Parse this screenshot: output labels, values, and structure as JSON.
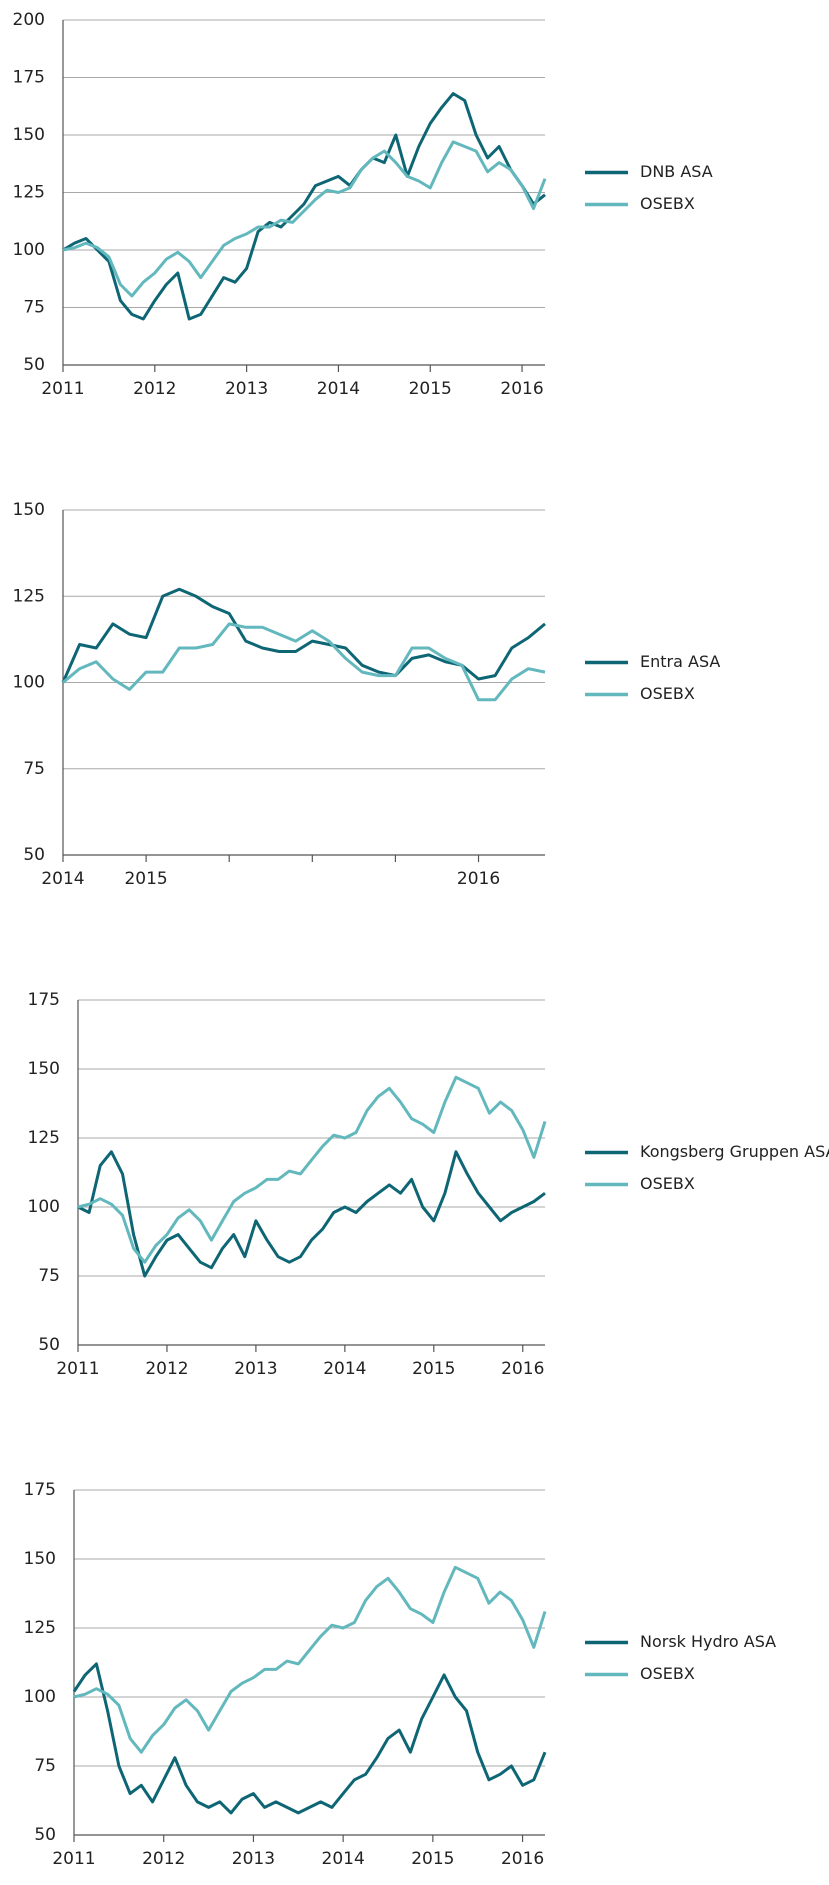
{
  "chart_data": [
    {
      "type": "line",
      "legend": "right",
      "x": [
        2011,
        2011.125,
        2011.25,
        2011.375,
        2011.5,
        2011.625,
        2011.75,
        2011.875,
        2012,
        2012.125,
        2012.25,
        2012.375,
        2012.5,
        2012.625,
        2012.75,
        2012.875,
        2013,
        2013.125,
        2013.25,
        2013.375,
        2013.5,
        2013.625,
        2013.75,
        2013.875,
        2014,
        2014.125,
        2014.25,
        2014.375,
        2014.5,
        2014.625,
        2014.75,
        2014.875,
        2015,
        2015.125,
        2015.25,
        2015.375,
        2015.5,
        2015.625,
        2015.75,
        2015.875,
        2016,
        2016.125,
        2016.25
      ],
      "series": [
        {
          "name": "DNB ASA",
          "color": "#0e6675",
          "values": [
            100,
            103,
            105,
            100,
            95,
            78,
            72,
            70,
            78,
            85,
            90,
            70,
            72,
            80,
            88,
            86,
            92,
            108,
            112,
            110,
            115,
            120,
            128,
            130,
            132,
            128,
            135,
            140,
            138,
            150,
            132,
            145,
            155,
            162,
            168,
            165,
            150,
            140,
            145,
            135,
            128,
            120,
            124
          ]
        },
        {
          "name": "OSEBX",
          "color": "#62b8bd",
          "values": [
            100,
            101,
            103,
            101,
            97,
            85,
            80,
            86,
            90,
            96,
            99,
            95,
            88,
            95,
            102,
            105,
            107,
            110,
            110,
            113,
            112,
            117,
            122,
            126,
            125,
            127,
            135,
            140,
            143,
            138,
            132,
            130,
            127,
            138,
            147,
            145,
            143,
            134,
            138,
            135,
            128,
            118,
            131
          ]
        }
      ],
      "xlim": [
        2011,
        2016.25
      ],
      "xticks": [
        2011,
        2012,
        2013,
        2014,
        2015,
        2016
      ],
      "ylim": [
        50,
        200
      ],
      "yticks": [
        50,
        75,
        100,
        125,
        150,
        175,
        200
      ],
      "grid": true
    },
    {
      "type": "line",
      "legend": "right",
      "x": [
        2014.75,
        2014.8,
        2014.85,
        2014.9,
        2014.95,
        2015,
        2015.05,
        2015.1,
        2015.15,
        2015.2,
        2015.25,
        2015.3,
        2015.35,
        2015.4,
        2015.45,
        2015.5,
        2015.55,
        2015.6,
        2015.65,
        2015.7,
        2015.75,
        2015.8,
        2015.85,
        2015.9,
        2015.95,
        2016,
        2016.05,
        2016.1,
        2016.15,
        2016.2
      ],
      "series": [
        {
          "name": "Entra ASA",
          "color": "#0e6675",
          "values": [
            100,
            111,
            110,
            117,
            114,
            113,
            125,
            127,
            125,
            122,
            120,
            112,
            110,
            109,
            109,
            112,
            111,
            110,
            105,
            103,
            102,
            107,
            108,
            106,
            105,
            101,
            102,
            110,
            113,
            117
          ]
        },
        {
          "name": "OSEBX",
          "color": "#62b8bd",
          "values": [
            100,
            104,
            106,
            101,
            98,
            103,
            103,
            110,
            110,
            111,
            117,
            116,
            116,
            114,
            112,
            115,
            112,
            107,
            103,
            102,
            102,
            110,
            110,
            107,
            105,
            95,
            95,
            101,
            104,
            103
          ]
        }
      ],
      "xlim": [
        2014.75,
        2016.2
      ],
      "xticks": [
        {
          "value": 2014.75,
          "label": "2014"
        },
        2015,
        {
          "value": 2015.25,
          "label": null
        },
        {
          "value": 2015.5,
          "label": null
        },
        {
          "value": 2015.75,
          "label": null
        },
        2016
      ],
      "ylim": [
        50,
        150
      ],
      "yticks": [
        50,
        75,
        100,
        125,
        150
      ],
      "grid": true
    },
    {
      "type": "line",
      "legend": "right",
      "x": [
        2011,
        2011.125,
        2011.25,
        2011.375,
        2011.5,
        2011.625,
        2011.75,
        2011.875,
        2012,
        2012.125,
        2012.25,
        2012.375,
        2012.5,
        2012.625,
        2012.75,
        2012.875,
        2013,
        2013.125,
        2013.25,
        2013.375,
        2013.5,
        2013.625,
        2013.75,
        2013.875,
        2014,
        2014.125,
        2014.25,
        2014.375,
        2014.5,
        2014.625,
        2014.75,
        2014.875,
        2015,
        2015.125,
        2015.25,
        2015.375,
        2015.5,
        2015.625,
        2015.75,
        2015.875,
        2016,
        2016.125,
        2016.25
      ],
      "series": [
        {
          "name": "Kongsberg Gruppen ASA",
          "color": "#0e6675",
          "values": [
            100,
            98,
            115,
            120,
            112,
            90,
            75,
            82,
            88,
            90,
            85,
            80,
            78,
            85,
            90,
            82,
            95,
            88,
            82,
            80,
            82,
            88,
            92,
            98,
            100,
            98,
            102,
            105,
            108,
            105,
            110,
            100,
            95,
            105,
            120,
            112,
            105,
            100,
            95,
            98,
            100,
            102,
            105
          ]
        },
        {
          "name": "OSEBX",
          "color": "#62b8bd",
          "values": [
            100,
            101,
            103,
            101,
            97,
            85,
            80,
            86,
            90,
            96,
            99,
            95,
            88,
            95,
            102,
            105,
            107,
            110,
            110,
            113,
            112,
            117,
            122,
            126,
            125,
            127,
            135,
            140,
            143,
            138,
            132,
            130,
            127,
            138,
            147,
            145,
            143,
            134,
            138,
            135,
            128,
            118,
            131
          ]
        }
      ],
      "xlim": [
        2011,
        2016.25
      ],
      "xticks": [
        2011,
        2012,
        2013,
        2014,
        2015,
        2016
      ],
      "ylim": [
        50,
        175
      ],
      "yticks": [
        50,
        75,
        100,
        125,
        150,
        175
      ],
      "grid": true
    },
    {
      "type": "line",
      "legend": "right",
      "x": [
        2011,
        2011.125,
        2011.25,
        2011.375,
        2011.5,
        2011.625,
        2011.75,
        2011.875,
        2012,
        2012.125,
        2012.25,
        2012.375,
        2012.5,
        2012.625,
        2012.75,
        2012.875,
        2013,
        2013.125,
        2013.25,
        2013.375,
        2013.5,
        2013.625,
        2013.75,
        2013.875,
        2014,
        2014.125,
        2014.25,
        2014.375,
        2014.5,
        2014.625,
        2014.75,
        2014.875,
        2015,
        2015.125,
        2015.25,
        2015.375,
        2015.5,
        2015.625,
        2015.75,
        2015.875,
        2016,
        2016.125,
        2016.25
      ],
      "series": [
        {
          "name": "Norsk Hydro ASA",
          "color": "#0e6675",
          "values": [
            102,
            108,
            112,
            95,
            75,
            65,
            68,
            62,
            70,
            78,
            68,
            62,
            60,
            62,
            58,
            63,
            65,
            60,
            62,
            60,
            58,
            60,
            62,
            60,
            65,
            70,
            72,
            78,
            85,
            88,
            80,
            92,
            100,
            108,
            100,
            95,
            80,
            70,
            72,
            75,
            68,
            70,
            80
          ]
        },
        {
          "name": "OSEBX",
          "color": "#62b8bd",
          "values": [
            100,
            101,
            103,
            101,
            97,
            85,
            80,
            86,
            90,
            96,
            99,
            95,
            88,
            95,
            102,
            105,
            107,
            110,
            110,
            113,
            112,
            117,
            122,
            126,
            125,
            127,
            135,
            140,
            143,
            138,
            132,
            130,
            127,
            138,
            147,
            145,
            143,
            134,
            138,
            135,
            128,
            118,
            131
          ]
        }
      ],
      "xlim": [
        2011,
        2016.25
      ],
      "xticks": [
        2011,
        2012,
        2013,
        2014,
        2015,
        2016
      ],
      "ylim": [
        50,
        175
      ],
      "yticks": [
        50,
        75,
        100,
        125,
        150,
        175
      ],
      "grid": true
    }
  ]
}
